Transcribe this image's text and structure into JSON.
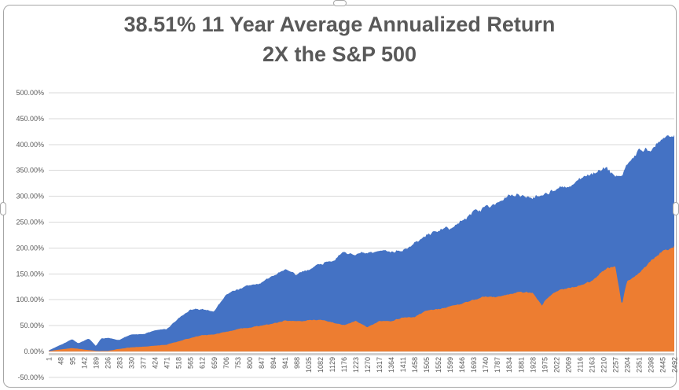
{
  "chart": {
    "title_line1": "38.51% 11 Year Average Annualized Return",
    "title_line2": "2X the S&P 500",
    "title_color": "#595959"
  },
  "chart_data": {
    "type": "area",
    "title": "38.51% 11 Year Average Annualized Return 2X the S&P 500",
    "grid": "horizontal",
    "legend": "none",
    "gridline_color": "#d9d9d9",
    "axis_line_color": "#d0d0d0",
    "tick_label_color": "#595959",
    "y_axis": {
      "min": -50,
      "max": 500,
      "step": 50,
      "unit": "%",
      "tick_labels": [
        "500.00%",
        "450.00%",
        "400.00%",
        "350.00%",
        "300.00%",
        "250.00%",
        "200.00%",
        "150.00%",
        "100.00%",
        "50.00%",
        "0.00%",
        "-50.00%"
      ]
    },
    "x_axis": {
      "min": 1,
      "max": 2492,
      "label_rotation": -90,
      "tick_labels": [
        "1",
        "48",
        "95",
        "142",
        "189",
        "236",
        "283",
        "330",
        "377",
        "424",
        "471",
        "518",
        "565",
        "612",
        "659",
        "706",
        "753",
        "800",
        "847",
        "894",
        "941",
        "988",
        "1035",
        "1082",
        "1129",
        "1176",
        "1223",
        "1270",
        "1317",
        "1364",
        "1411",
        "1458",
        "1505",
        "1552",
        "1599",
        "1646",
        "1693",
        "1740",
        "1787",
        "1834",
        "1881",
        "1928",
        "1975",
        "2022",
        "2069",
        "2116",
        "2163",
        "2210",
        "2257",
        "2304",
        "2351",
        "2398",
        "2445",
        "2492"
      ]
    },
    "series": [
      {
        "id": "series-blue",
        "color": "#4472C4",
        "unit": "%",
        "points": [
          [
            1,
            2
          ],
          [
            48,
            13
          ],
          [
            95,
            24
          ],
          [
            118,
            16
          ],
          [
            142,
            21
          ],
          [
            161,
            25
          ],
          [
            189,
            10
          ],
          [
            210,
            25
          ],
          [
            236,
            26
          ],
          [
            283,
            22
          ],
          [
            330,
            34
          ],
          [
            377,
            33
          ],
          [
            424,
            41
          ],
          [
            471,
            43
          ],
          [
            518,
            64
          ],
          [
            565,
            80
          ],
          [
            612,
            81
          ],
          [
            659,
            78
          ],
          [
            706,
            109
          ],
          [
            753,
            121
          ],
          [
            800,
            127
          ],
          [
            847,
            133
          ],
          [
            894,
            145
          ],
          [
            941,
            160
          ],
          [
            988,
            146
          ],
          [
            1035,
            160
          ],
          [
            1082,
            170
          ],
          [
            1129,
            177
          ],
          [
            1176,
            190
          ],
          [
            1223,
            189
          ],
          [
            1270,
            188
          ],
          [
            1317,
            192
          ],
          [
            1364,
            195
          ],
          [
            1411,
            197
          ],
          [
            1458,
            208
          ],
          [
            1505,
            223
          ],
          [
            1552,
            236
          ],
          [
            1599,
            238
          ],
          [
            1646,
            250
          ],
          [
            1693,
            272
          ],
          [
            1740,
            278
          ],
          [
            1787,
            289
          ],
          [
            1834,
            300
          ],
          [
            1881,
            302
          ],
          [
            1928,
            300
          ],
          [
            1975,
            307
          ],
          [
            2022,
            315
          ],
          [
            2069,
            315
          ],
          [
            2116,
            330
          ],
          [
            2163,
            345
          ],
          [
            2210,
            352
          ],
          [
            2257,
            341
          ],
          [
            2280,
            336
          ],
          [
            2304,
            362
          ],
          [
            2351,
            389
          ],
          [
            2398,
            382
          ],
          [
            2445,
            410
          ],
          [
            2492,
            426
          ]
        ]
      },
      {
        "id": "series-orange",
        "color": "#ED7D31",
        "unit": "%",
        "points": [
          [
            1,
            1
          ],
          [
            48,
            4
          ],
          [
            95,
            7
          ],
          [
            142,
            4
          ],
          [
            189,
            1
          ],
          [
            236,
            1
          ],
          [
            283,
            5
          ],
          [
            330,
            8
          ],
          [
            377,
            9
          ],
          [
            424,
            11
          ],
          [
            471,
            13
          ],
          [
            518,
            20
          ],
          [
            565,
            26
          ],
          [
            612,
            31
          ],
          [
            659,
            33
          ],
          [
            706,
            38
          ],
          [
            753,
            43
          ],
          [
            800,
            46
          ],
          [
            847,
            50
          ],
          [
            894,
            54
          ],
          [
            941,
            59
          ],
          [
            988,
            59
          ],
          [
            1035,
            61
          ],
          [
            1082,
            61
          ],
          [
            1129,
            56
          ],
          [
            1176,
            51
          ],
          [
            1223,
            59
          ],
          [
            1270,
            46
          ],
          [
            1317,
            59
          ],
          [
            1364,
            59
          ],
          [
            1411,
            66
          ],
          [
            1458,
            66
          ],
          [
            1505,
            79
          ],
          [
            1552,
            81
          ],
          [
            1599,
            86
          ],
          [
            1646,
            92
          ],
          [
            1693,
            100
          ],
          [
            1740,
            107
          ],
          [
            1787,
            105
          ],
          [
            1834,
            110
          ],
          [
            1881,
            115
          ],
          [
            1928,
            112
          ],
          [
            1966,
            87
          ],
          [
            1975,
            97
          ],
          [
            2022,
            117
          ],
          [
            2069,
            123
          ],
          [
            2116,
            127
          ],
          [
            2163,
            137
          ],
          [
            2210,
            155
          ],
          [
            2257,
            165
          ],
          [
            2283,
            89
          ],
          [
            2304,
            137
          ],
          [
            2351,
            152
          ],
          [
            2398,
            175
          ],
          [
            2445,
            195
          ],
          [
            2492,
            203
          ]
        ]
      }
    ]
  }
}
